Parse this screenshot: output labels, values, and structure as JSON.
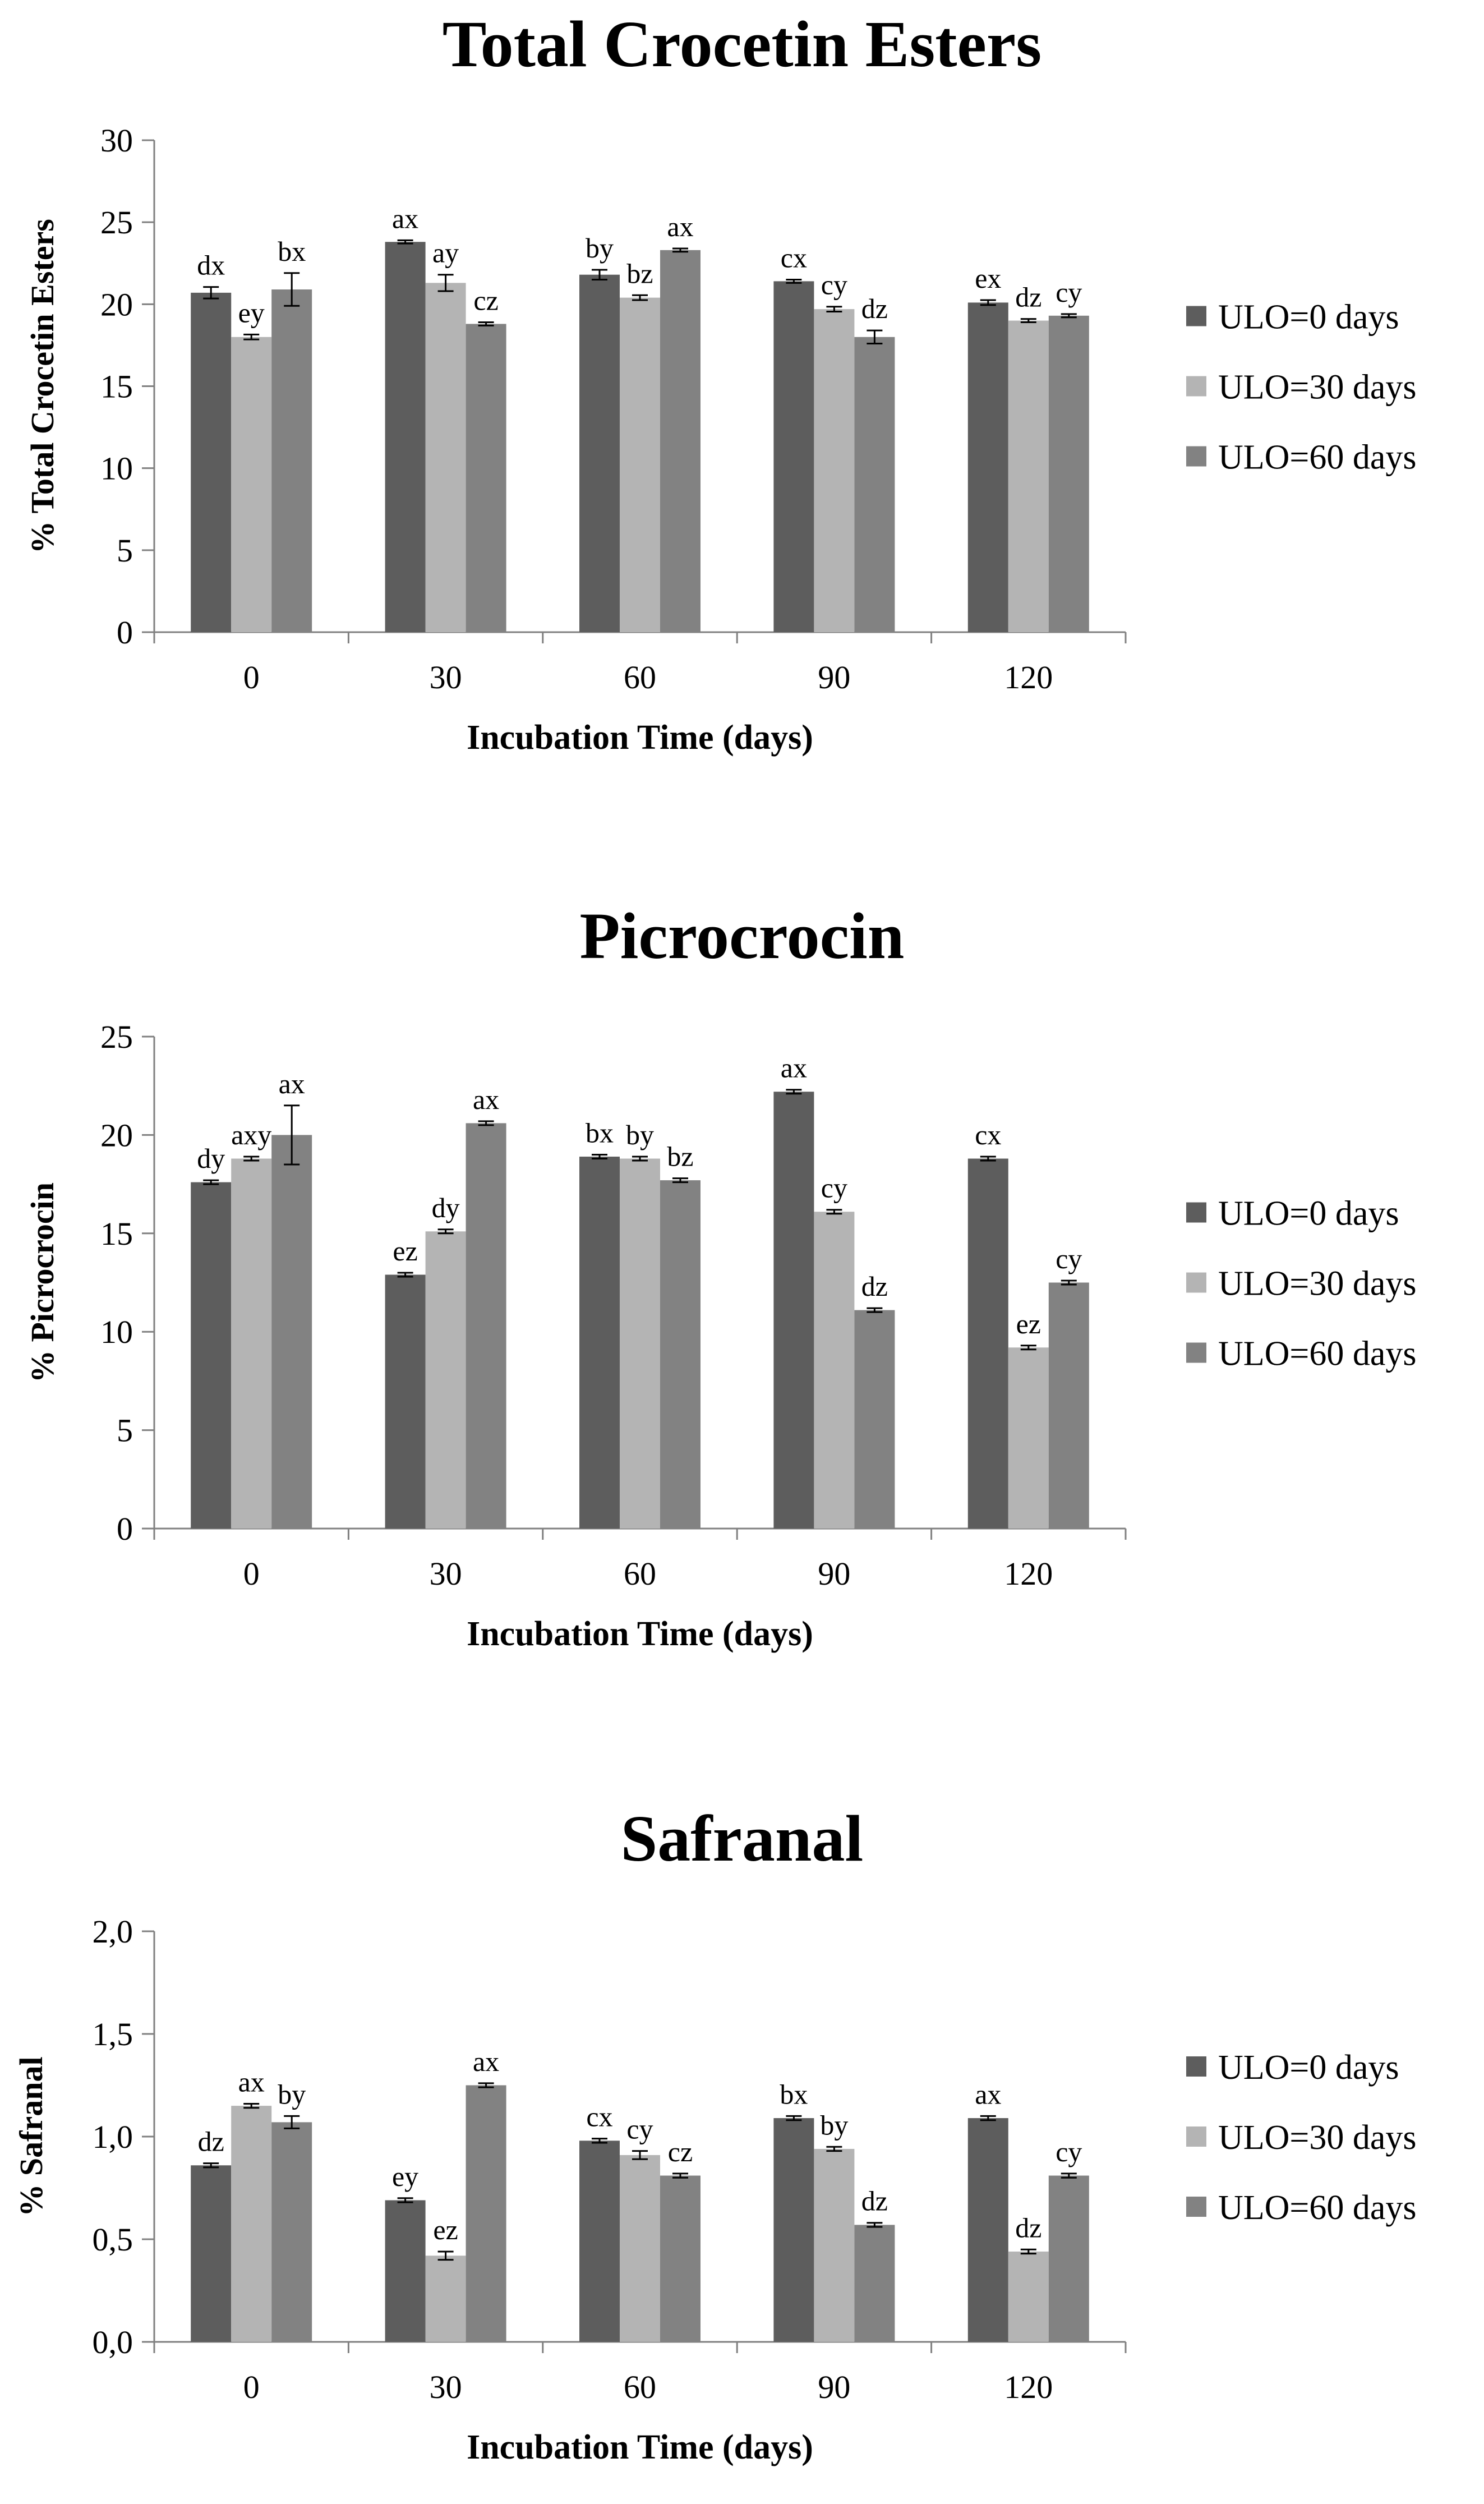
{
  "legend_labels": [
    "ULO=0 days",
    "ULO=30 days",
    "ULO=60 days"
  ],
  "colors": {
    "ulo0": "#5d5d5d",
    "ulo30": "#b4b4b4",
    "ulo60": "#828282",
    "axis": "#808080",
    "text": "#000000"
  },
  "chart_data": [
    {
      "type": "bar",
      "title": "Total Crocetin Esters",
      "xlabel": "Incubation Time (days)",
      "ylabel": "% Total Crocetin Esters",
      "categories": [
        "0",
        "30",
        "60",
        "90",
        "120"
      ],
      "ylim": [
        0,
        30
      ],
      "yticks": [
        "0",
        "5",
        "10",
        "15",
        "20",
        "25",
        "30"
      ],
      "series": [
        {
          "name": "ULO=0 days",
          "values": [
            20.7,
            23.8,
            21.8,
            21.4,
            20.1
          ],
          "errors": [
            0.35,
            0.1,
            0.3,
            0.1,
            0.15
          ],
          "labels": [
            "dx",
            "ax",
            "by",
            "cx",
            "ex"
          ]
        },
        {
          "name": "ULO=30 days",
          "values": [
            18.0,
            21.3,
            20.4,
            19.7,
            19.0
          ],
          "errors": [
            0.15,
            0.5,
            0.15,
            0.15,
            0.1
          ],
          "labels": [
            "ey",
            "ay",
            "bz",
            "cy",
            "dz"
          ]
        },
        {
          "name": "ULO=60 days",
          "values": [
            20.9,
            18.8,
            23.3,
            18.0,
            19.3
          ],
          "errors": [
            1.0,
            0.1,
            0.1,
            0.4,
            0.1
          ],
          "labels": [
            "bx",
            "cz",
            "ax",
            "dz",
            "cy"
          ]
        }
      ],
      "legend": "right"
    },
    {
      "type": "bar",
      "title": "Picrocrocin",
      "xlabel": "Incubation Time (days)",
      "ylabel": "% Picrocrocin",
      "categories": [
        "0",
        "30",
        "60",
        "90",
        "120"
      ],
      "ylim": [
        0,
        25
      ],
      "yticks": [
        "0",
        "5",
        "10",
        "15",
        "20",
        "25"
      ],
      "series": [
        {
          "name": "ULO=0 days",
          "values": [
            17.6,
            12.9,
            18.9,
            22.2,
            18.8
          ],
          "errors": [
            0.1,
            0.1,
            0.1,
            0.1,
            0.1
          ],
          "labels": [
            "dy",
            "ez",
            "bx",
            "ax",
            "cx"
          ]
        },
        {
          "name": "ULO=30 days",
          "values": [
            18.8,
            15.1,
            18.8,
            16.1,
            9.2
          ],
          "errors": [
            0.1,
            0.1,
            0.1,
            0.1,
            0.1
          ],
          "labels": [
            "axy",
            "dy",
            "by",
            "cy",
            "ez"
          ]
        },
        {
          "name": "ULO=60 days",
          "values": [
            20.0,
            20.6,
            17.7,
            11.1,
            12.5
          ],
          "errors": [
            1.5,
            0.1,
            0.1,
            0.1,
            0.1
          ],
          "labels": [
            "ax",
            "ax",
            "bz",
            "dz",
            "cy"
          ]
        }
      ],
      "legend": "right"
    },
    {
      "type": "bar",
      "title": "Safranal",
      "xlabel": "Incubation Time (days)",
      "ylabel": "% Safranal",
      "categories": [
        "0",
        "30",
        "60",
        "90",
        "120"
      ],
      "ylim": [
        0,
        2.0
      ],
      "yticks": [
        "0,0",
        "0,5",
        "1,0",
        "1,5",
        "2,0"
      ],
      "series": [
        {
          "name": "ULO=0 days",
          "values": [
            0.86,
            0.69,
            0.98,
            1.09,
            1.09
          ],
          "errors": [
            0.01,
            0.01,
            0.01,
            0.01,
            0.01
          ],
          "labels": [
            "dz",
            "ey",
            "cx",
            "bx",
            "ax"
          ]
        },
        {
          "name": "ULO=30 days",
          "values": [
            1.15,
            0.42,
            0.91,
            0.94,
            0.44
          ],
          "errors": [
            0.01,
            0.02,
            0.02,
            0.01,
            0.01
          ],
          "labels": [
            "ax",
            "ez",
            "cy",
            "by",
            "dz"
          ]
        },
        {
          "name": "ULO=60 days",
          "values": [
            1.07,
            1.25,
            0.81,
            0.57,
            0.81
          ],
          "errors": [
            0.03,
            0.01,
            0.01,
            0.01,
            0.01
          ],
          "labels": [
            "by",
            "ax",
            "cz",
            "dz",
            "cy"
          ]
        }
      ],
      "legend": "right"
    }
  ]
}
